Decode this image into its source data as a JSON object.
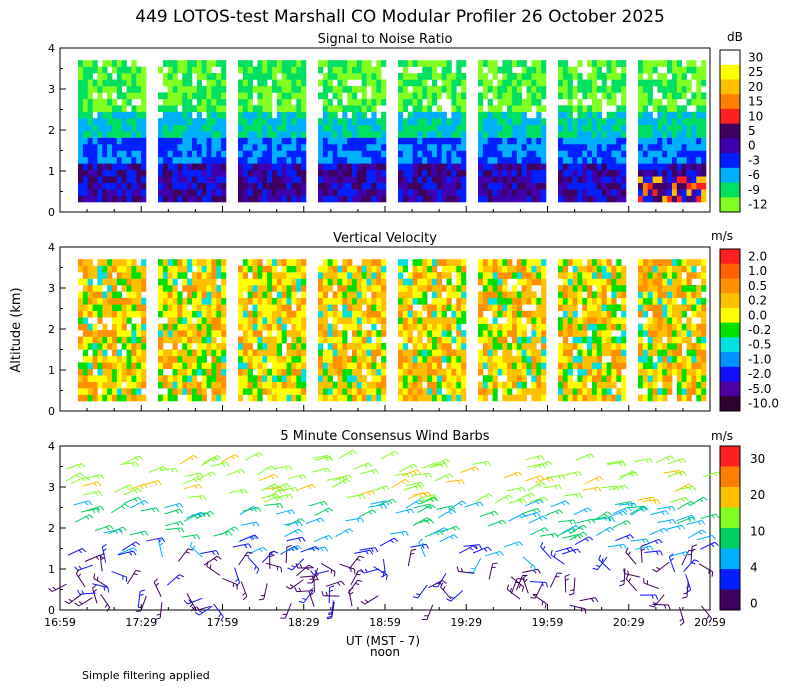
{
  "title": "449 LOTOS-test Marshall CO Modular Profiler 26 October 2025",
  "footer_note": "Simple filtering applied",
  "ylabel_shared": "Altitude (km)",
  "xlabel": "UT  (MST - 7)",
  "noon_label": "noon",
  "chart_data": [
    {
      "type": "heatmap",
      "id": "snr",
      "title": "Signal to Noise Ratio",
      "colorbar_unit": "dB",
      "colorbar_labels": [
        "30",
        "25",
        "20",
        "15",
        "10",
        "5",
        "0",
        "-3",
        "-6",
        "-9",
        "-12"
      ],
      "colorbar_colors": [
        "#ffffff",
        "#ffff00",
        "#ffc000",
        "#ff8000",
        "#ff2020",
        "#400060",
        "#4000b0",
        "#0020ff",
        "#00b0ff",
        "#00e060",
        "#80ff20"
      ],
      "x_ticks": [
        "16:59",
        "17:29",
        "17:59",
        "18:29",
        "18:59",
        "19:29",
        "19:59",
        "20:29",
        "20:59"
      ],
      "ylim": [
        0,
        4
      ],
      "y_ticks": [
        0,
        1,
        2,
        3,
        4
      ],
      "ylabel": "Altitude (km)"
    },
    {
      "type": "heatmap",
      "id": "velocity",
      "title": "Vertical Velocity",
      "colorbar_unit": "m/s",
      "colorbar_labels": [
        "2.0",
        "1.0",
        "0.5",
        "0.2",
        "0.0",
        "-0.2",
        "-0.5",
        "-1.0",
        "-2.0",
        "-5.0",
        "-10.0"
      ],
      "colorbar_colors": [
        "#ff2020",
        "#ff6000",
        "#ff9000",
        "#ffc000",
        "#ffff00",
        "#00e000",
        "#00e0e0",
        "#0090ff",
        "#1010ff",
        "#5000a0",
        "#300030"
      ],
      "x_ticks": [
        "16:59",
        "17:29",
        "17:59",
        "18:29",
        "18:59",
        "19:29",
        "19:59",
        "20:29",
        "20:59"
      ],
      "ylim": [
        0,
        4
      ],
      "y_ticks": [
        0,
        1,
        2,
        3,
        4
      ]
    },
    {
      "type": "scatter",
      "id": "wind",
      "title": "5 Minute Consensus Wind Barbs",
      "colorbar_unit": "m/s",
      "colorbar_labels": [
        "30",
        "20",
        "10",
        "4",
        "0"
      ],
      "colorbar_colors": [
        "#ff2020",
        "#ff8000",
        "#ffc000",
        "#80ff20",
        "#00d060",
        "#00b0ff",
        "#0020ff",
        "#400060"
      ],
      "x_ticks": [
        "16:59",
        "17:29",
        "17:59",
        "18:29",
        "18:59",
        "19:29",
        "19:59",
        "20:29",
        "20:59"
      ],
      "ylim": [
        0,
        4
      ],
      "y_ticks": [
        0,
        1,
        2,
        3,
        4
      ]
    }
  ]
}
